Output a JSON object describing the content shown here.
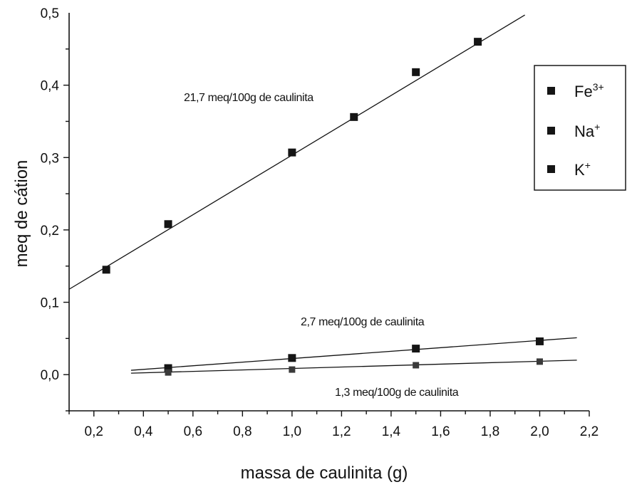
{
  "chart_data": {
    "type": "scatter",
    "xlabel": "massa de caulinita (g)",
    "ylabel": "meq de cátion",
    "xlim": [
      0.1,
      2.2
    ],
    "ylim": [
      -0.05,
      0.5
    ],
    "x_ticks": [
      "0,2",
      "0,4",
      "0,6",
      "0,8",
      "1,0",
      "1,2",
      "1,4",
      "1,6",
      "1,8",
      "2,0",
      "2,2"
    ],
    "y_ticks": [
      "0,0",
      "0,1",
      "0,2",
      "0,3",
      "0,4",
      "0,5"
    ],
    "legend_position": "top-right",
    "series": [
      {
        "name": "Fe",
        "superscript": "3+",
        "marker": "square",
        "color": "#151515",
        "points": [
          {
            "x": 0.25,
            "y": 0.145
          },
          {
            "x": 0.5,
            "y": 0.208
          },
          {
            "x": 1.0,
            "y": 0.307
          },
          {
            "x": 1.25,
            "y": 0.356
          },
          {
            "x": 1.5,
            "y": 0.418
          },
          {
            "x": 1.75,
            "y": 0.46
          }
        ],
        "fit_line": {
          "x": [
            0.1,
            1.94
          ],
          "y": [
            0.118,
            0.497
          ]
        },
        "annotation": "21,7 meq/100g de caulinita"
      },
      {
        "name": "Na",
        "superscript": "+",
        "marker": "square",
        "color": "#151515",
        "points": [
          {
            "x": 0.5,
            "y": 0.009
          },
          {
            "x": 1.0,
            "y": 0.023
          },
          {
            "x": 1.5,
            "y": 0.036
          },
          {
            "x": 2.0,
            "y": 0.046
          }
        ],
        "fit_line": {
          "x": [
            0.35,
            2.15
          ],
          "y": [
            0.006,
            0.051
          ]
        },
        "annotation": "2,7 meq/100g de caulinita"
      },
      {
        "name": "K",
        "superscript": "+",
        "marker": "square",
        "color": "#3a3a3a",
        "points": [
          {
            "x": 0.5,
            "y": 0.003
          },
          {
            "x": 1.0,
            "y": 0.007
          },
          {
            "x": 1.5,
            "y": 0.013
          },
          {
            "x": 2.0,
            "y": 0.018
          }
        ],
        "fit_line": {
          "x": [
            0.35,
            2.15
          ],
          "y": [
            0.002,
            0.02
          ]
        },
        "annotation": "1,3 meq/100g de caulinita"
      }
    ]
  }
}
